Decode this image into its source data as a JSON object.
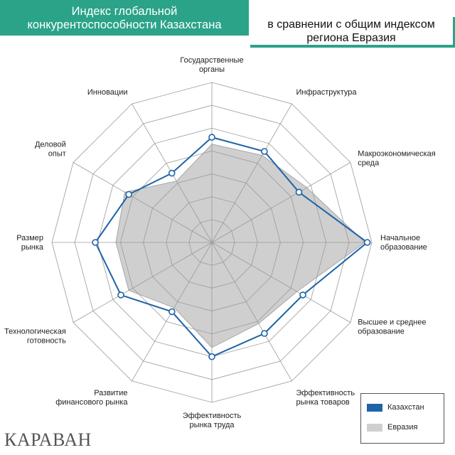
{
  "header": {
    "title_lines": [
      "Индекс глобальной",
      "конкурентоспособности Казахстана"
    ],
    "subtitle_lines": [
      "в сравнении с общим индексом",
      "региона Евразия"
    ]
  },
  "colors": {
    "header_bg": "#2aa389",
    "kazakhstan": "#1f63a8",
    "eurasia_fill": "#cfcfcf",
    "eurasia_line": "#a8a8a8",
    "grid": "#9a9a9a"
  },
  "chart_data": {
    "type": "radar",
    "title": "Индекс глобальной конкурентоспособности Казахстана",
    "subtitle": "в сравнении с общим индексом региона Евразия",
    "rmax": 7,
    "rings": 7,
    "categories": [
      [
        "Государственные",
        "органы"
      ],
      [
        "Инфраструктура"
      ],
      [
        "Макроэкономическая",
        "среда"
      ],
      [
        "Начальное",
        "образование"
      ],
      [
        "Высшее и среднее",
        "образование"
      ],
      [
        "Эффективность",
        "рынка товаров"
      ],
      [
        "Эффективность",
        "рынка труда"
      ],
      [
        "Развитие",
        "финансового рынка"
      ],
      [
        "Технологическая",
        "готовность"
      ],
      [
        "Размер",
        "рынка"
      ],
      [
        "Деловой",
        "опыт"
      ],
      [
        "Инновации"
      ]
    ],
    "series": [
      {
        "name": "Казахстан",
        "values": [
          4.6,
          4.6,
          4.4,
          6.8,
          4.6,
          4.6,
          5.0,
          3.5,
          4.6,
          5.1,
          4.2,
          3.5
        ]
      },
      {
        "name": "Евразия",
        "values": [
          4.3,
          4.4,
          4.8,
          6.7,
          4.3,
          4.1,
          4.6,
          3.3,
          4.2,
          4.2,
          4.4,
          3.1
        ]
      }
    ],
    "legend_position": "bottom-right"
  },
  "legend": {
    "items": [
      {
        "label": "Казахстан"
      },
      {
        "label": "Евразия"
      }
    ]
  },
  "logo": {
    "text": "КАРАВАН"
  }
}
